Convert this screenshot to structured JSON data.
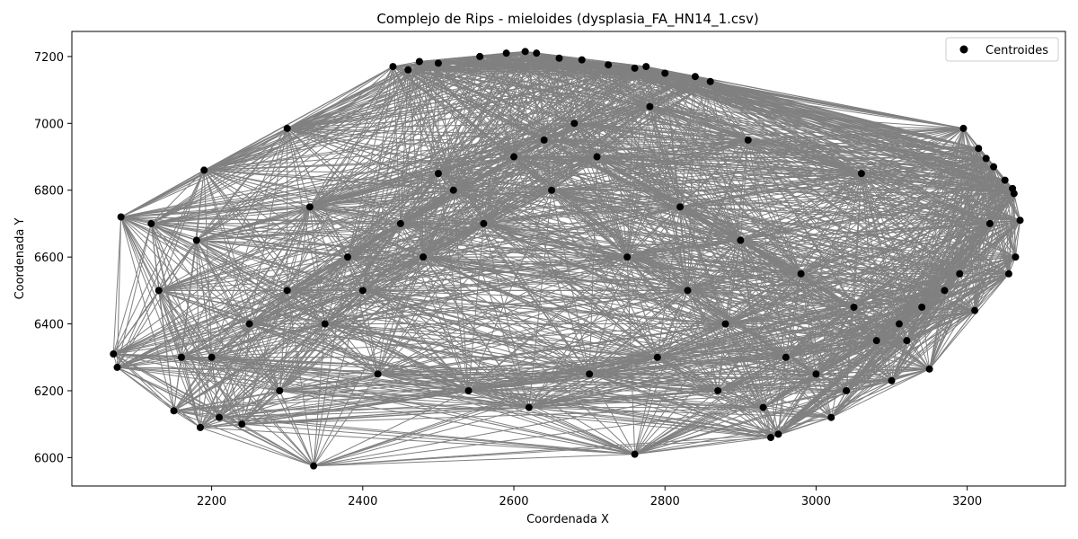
{
  "chart_data": {
    "type": "scatter",
    "title": "Complejo de Rips - mieloides (dysplasia_FA_HN14_1.csv)",
    "xlabel": "Coordenada X",
    "ylabel": "Coordenada Y",
    "xlim": [
      2015,
      3330
    ],
    "ylim": [
      5915,
      7275
    ],
    "xticks": [
      2200,
      2400,
      2600,
      2800,
      3000,
      3200
    ],
    "yticks": [
      6000,
      6200,
      6400,
      6600,
      6800,
      7000,
      7200
    ],
    "grid": false,
    "legend": {
      "position": "top-right",
      "entries": [
        "Centroides"
      ]
    },
    "colors": {
      "points": "#000000",
      "edges": "#808080"
    },
    "series": [
      {
        "name": "Centroides",
        "kind": "points",
        "x": [
          2080,
          2070,
          2075,
          2120,
          2150,
          2185,
          2190,
          2210,
          2240,
          2300,
          2335,
          2440,
          2460,
          2475,
          2500,
          2555,
          2590,
          2615,
          2630,
          2660,
          2690,
          2725,
          2760,
          2775,
          2800,
          2840,
          2860,
          2940,
          2950,
          3020,
          3100,
          3150,
          3195,
          3210,
          3215,
          3225,
          3235,
          3250,
          3260,
          3262,
          3264,
          3270,
          3255,
          2760,
          2350,
          2400,
          2480,
          2560,
          2650,
          2710,
          2820,
          2900,
          2980,
          3050,
          3120,
          2200,
          2250,
          2300,
          2380,
          2450,
          2520,
          2600,
          2680,
          2750,
          2830,
          2880,
          2960,
          3040,
          3110,
          3170,
          3230,
          2130,
          2160,
          2290,
          2420,
          2540,
          2620,
          2700,
          2790,
          2870,
          2930,
          3000,
          3080,
          3140,
          3190,
          2180,
          2330,
          2500,
          2640,
          2780,
          2910,
          3060
        ],
        "y": [
          6720,
          6310,
          6270,
          6700,
          6140,
          6090,
          6860,
          6120,
          6100,
          6985,
          5975,
          7170,
          7160,
          7185,
          7180,
          7200,
          7210,
          7215,
          7210,
          7195,
          7190,
          7175,
          7165,
          7170,
          7150,
          7140,
          7125,
          6060,
          6070,
          6120,
          6230,
          6265,
          6985,
          6440,
          6925,
          6895,
          6870,
          6830,
          6805,
          6790,
          6600,
          6710,
          6550,
          6010,
          6400,
          6500,
          6600,
          6700,
          6800,
          6900,
          6750,
          6650,
          6550,
          6450,
          6350,
          6300,
          6400,
          6500,
          6600,
          6700,
          6800,
          6900,
          7000,
          6600,
          6500,
          6400,
          6300,
          6200,
          6400,
          6500,
          6700,
          6500,
          6300,
          6200,
          6250,
          6200,
          6150,
          6250,
          6300,
          6200,
          6150,
          6250,
          6350,
          6450,
          6550,
          6650,
          6750,
          6850,
          6950,
          7050,
          6950,
          6850
        ]
      },
      {
        "name": "",
        "kind": "edges",
        "max_distance": 700
      }
    ]
  }
}
